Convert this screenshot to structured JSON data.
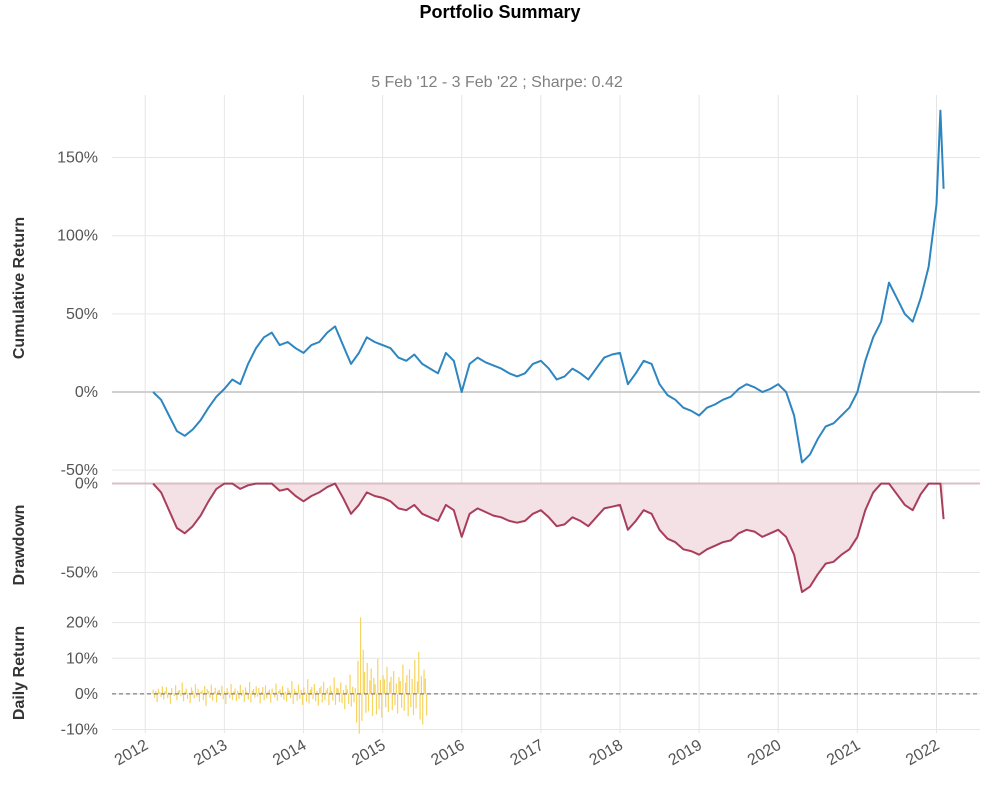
{
  "title": "Portfolio Summary",
  "subtitle": "5 Feb '12 -  3 Feb '22 ;  Sharpe: 0.42",
  "colors": {
    "cumulative": "#2e86c1",
    "drawdown": "#a93e5a",
    "drawdown_fill": "#f3e1e6",
    "daily": "#f7d35f"
  },
  "chart_data": [
    {
      "type": "line",
      "panel": "cumulative",
      "ylabel": "Cumulative Return",
      "ylim": [
        -55,
        190
      ],
      "yticks": [
        -50,
        0,
        50,
        100,
        150
      ],
      "ytick_labels": [
        "-50%",
        "0%",
        "50%",
        "100%",
        "150%"
      ],
      "series": [
        {
          "x": [
            2012.1,
            2012.2,
            2012.3,
            2012.4,
            2012.5,
            2012.6,
            2012.7,
            2012.8,
            2012.9,
            2013.0,
            2013.1,
            2013.2,
            2013.3,
            2013.4,
            2013.5,
            2013.6,
            2013.7,
            2013.8,
            2013.9,
            2014.0,
            2014.1,
            2014.2,
            2014.3,
            2014.4,
            2014.5,
            2014.6,
            2014.7,
            2014.8,
            2014.9,
            2015.0,
            2015.1,
            2015.2,
            2015.3,
            2015.4,
            2015.5,
            2015.6,
            2015.7,
            2015.8,
            2015.9,
            2016.0,
            2016.1,
            2016.2,
            2016.3,
            2016.4,
            2016.5,
            2016.6,
            2016.7,
            2016.8,
            2016.9,
            2017.0,
            2017.1,
            2017.2,
            2017.3,
            2017.4,
            2017.5,
            2017.6,
            2017.7,
            2017.8,
            2017.9,
            2018.0,
            2018.1,
            2018.2,
            2018.3,
            2018.4,
            2018.5,
            2018.6,
            2018.7,
            2018.8,
            2018.9,
            2019.0,
            2019.1,
            2019.2,
            2019.3,
            2019.4,
            2019.5,
            2019.6,
            2019.7,
            2019.8,
            2019.9,
            2020.0,
            2020.1,
            2020.2,
            2020.3,
            2020.4,
            2020.5,
            2020.6,
            2020.7,
            2020.8,
            2020.9,
            2021.0,
            2021.1,
            2021.2,
            2021.3,
            2021.4,
            2021.5,
            2021.6,
            2021.7,
            2021.8,
            2021.9,
            2022.0,
            2022.05,
            2022.09
          ],
          "y": [
            0,
            -5,
            -15,
            -25,
            -28,
            -24,
            -18,
            -10,
            -3,
            2,
            8,
            5,
            18,
            28,
            35,
            38,
            30,
            32,
            28,
            25,
            30,
            32,
            38,
            42,
            30,
            18,
            25,
            35,
            32,
            30,
            28,
            22,
            20,
            24,
            18,
            15,
            12,
            25,
            20,
            0,
            18,
            22,
            19,
            17,
            15,
            12,
            10,
            12,
            18,
            20,
            15,
            8,
            10,
            15,
            12,
            8,
            15,
            22,
            24,
            25,
            5,
            12,
            20,
            18,
            5,
            -2,
            -5,
            -10,
            -12,
            -15,
            -10,
            -8,
            -5,
            -3,
            2,
            5,
            3,
            0,
            2,
            5,
            0,
            -15,
            -45,
            -40,
            -30,
            -22,
            -20,
            -15,
            -10,
            0,
            20,
            35,
            45,
            70,
            60,
            50,
            45,
            60,
            80,
            120,
            180,
            130
          ]
        }
      ]
    },
    {
      "type": "area",
      "panel": "drawdown",
      "ylabel": "Drawdown",
      "ylim": [
        -70,
        2
      ],
      "yticks": [
        -50,
        0
      ],
      "ytick_labels": [
        "-50%",
        "0%"
      ],
      "series": [
        {
          "x": [
            2012.1,
            2012.2,
            2012.3,
            2012.4,
            2012.5,
            2012.6,
            2012.7,
            2012.8,
            2012.9,
            2013.0,
            2013.1,
            2013.2,
            2013.3,
            2013.4,
            2013.5,
            2013.6,
            2013.7,
            2013.8,
            2013.9,
            2014.0,
            2014.1,
            2014.2,
            2014.3,
            2014.4,
            2014.5,
            2014.6,
            2014.7,
            2014.8,
            2014.9,
            2015.0,
            2015.1,
            2015.2,
            2015.3,
            2015.4,
            2015.5,
            2015.6,
            2015.7,
            2015.8,
            2015.9,
            2016.0,
            2016.1,
            2016.2,
            2016.3,
            2016.4,
            2016.5,
            2016.6,
            2016.7,
            2016.8,
            2016.9,
            2017.0,
            2017.1,
            2017.2,
            2017.3,
            2017.4,
            2017.5,
            2017.6,
            2017.7,
            2017.8,
            2017.9,
            2018.0,
            2018.1,
            2018.2,
            2018.3,
            2018.4,
            2018.5,
            2018.6,
            2018.7,
            2018.8,
            2018.9,
            2019.0,
            2019.1,
            2019.2,
            2019.3,
            2019.4,
            2019.5,
            2019.6,
            2019.7,
            2019.8,
            2019.9,
            2020.0,
            2020.1,
            2020.2,
            2020.3,
            2020.4,
            2020.5,
            2020.6,
            2020.7,
            2020.8,
            2020.9,
            2021.0,
            2021.1,
            2021.2,
            2021.3,
            2021.4,
            2021.5,
            2021.6,
            2021.7,
            2021.8,
            2021.9,
            2022.0,
            2022.05,
            2022.09
          ],
          "y": [
            0,
            -5,
            -15,
            -25,
            -28,
            -24,
            -18,
            -10,
            -3,
            0,
            0,
            -3,
            -1,
            0,
            0,
            0,
            -4,
            -3,
            -7,
            -10,
            -7,
            -5,
            -2,
            0,
            -8,
            -17,
            -12,
            -5,
            -7,
            -8,
            -10,
            -14,
            -15,
            -12,
            -17,
            -19,
            -21,
            -12,
            -15,
            -30,
            -17,
            -14,
            -16,
            -18,
            -19,
            -21,
            -22,
            -21,
            -17,
            -15,
            -19,
            -24,
            -23,
            -19,
            -21,
            -24,
            -19,
            -14,
            -13,
            -12,
            -26,
            -21,
            -15,
            -17,
            -26,
            -31,
            -33,
            -37,
            -38,
            -40,
            -37,
            -35,
            -33,
            -32,
            -28,
            -26,
            -27,
            -30,
            -28,
            -26,
            -30,
            -40,
            -61,
            -58,
            -51,
            -45,
            -44,
            -40,
            -37,
            -30,
            -15,
            -5,
            0,
            0,
            -6,
            -12,
            -15,
            -6,
            0,
            0,
            0,
            -20
          ]
        }
      ]
    },
    {
      "type": "bar",
      "panel": "daily",
      "ylabel": "Daily Return",
      "ylim": [
        -11,
        23
      ],
      "yticks": [
        -10,
        0,
        10,
        20
      ],
      "ytick_labels": [
        "-10%",
        "0%",
        "10%",
        "20%"
      ],
      "baseline": 0,
      "x_start": 2012.1,
      "x_step": 0.0167,
      "values": [
        1.2,
        -1.1,
        0.8,
        -2.3,
        1.4,
        0.5,
        -0.9,
        2.1,
        -1.6,
        0.7,
        1.9,
        -1.2,
        0.4,
        -2.8,
        1.6,
        0.3,
        -0.6,
        2.4,
        -1.8,
        0.9,
        1.1,
        -0.7,
        3.2,
        -2.1,
        0.6,
        1.5,
        -1.4,
        0.2,
        -2.6,
        1.8,
        0.9,
        -1.3,
        2.7,
        -0.8,
        1.4,
        -2.2,
        0.6,
        1.0,
        -1.7,
        2.2,
        -3.4,
        1.3,
        0.8,
        -1.1,
        2.6,
        -1.9,
        0.5,
        1.7,
        -2.4,
        0.9,
        1.2,
        -0.6,
        2.3,
        -1.5,
        0.8,
        -2.9,
        1.6,
        0.4,
        -1.2,
        2.8,
        -1.7,
        0.7,
        1.5,
        -2.0,
        0.9,
        -1.4,
        2.5,
        -0.7,
        1.1,
        -2.3,
        1.8,
        0.6,
        -1.6,
        3.3,
        -2.4,
        0.9,
        1.4,
        -1.1,
        2.1,
        -0.8,
        1.6,
        -2.7,
        0.5,
        1.9,
        -1.8,
        2.4,
        -1.3,
        0.7,
        1.2,
        -2.5,
        1.5,
        0.4,
        -1.0,
        2.9,
        -1.9,
        0.8,
        1.3,
        -0.9,
        2.2,
        -1.6,
        0.6,
        -2.1,
        1.7,
        0.9,
        -1.2,
        3.6,
        -2.8,
        1.4,
        0.7,
        -1.9,
        2.6,
        -1.4,
        1.1,
        -3.1,
        1.8,
        0.5,
        -2.2,
        4.1,
        -2.7,
        1.2,
        1.9,
        -1.5,
        2.8,
        -2.1,
        0.9,
        -3.3,
        1.6,
        2.1,
        -2.4,
        3.4,
        -1.8,
        1.0,
        1.6,
        -3.2,
        2.3,
        0.8,
        -1.9,
        4.6,
        -3.1,
        1.7,
        1.5,
        -2.3,
        3.2,
        -2.6,
        1.1,
        -4.3,
        2.5,
        1.3,
        -2.8,
        5.4,
        -3.6,
        2.0,
        -2.4,
        1.7,
        -8.1,
        9.3,
        -11.2,
        21.5,
        -7.6,
        12.4,
        6.2,
        -5.3,
        8.7,
        -4.9,
        3.8,
        7.1,
        -6.2,
        4.5,
        2.7,
        -5.8,
        9.8,
        -4.4,
        3.9,
        -6.7,
        5.2,
        4.1,
        -3.8,
        7.6,
        -5.1,
        3.3,
        4.8,
        -4.6,
        6.4,
        -3.2,
        2.9,
        -5.5,
        4.7,
        3.6,
        -3.9,
        8.2,
        -4.8,
        3.1,
        5.3,
        -6.3,
        6.9,
        -3.7,
        4.2,
        -5.9,
        9.6,
        -4.1,
        3.5,
        11.8,
        -7.2,
        5.1,
        -8.6,
        6.8,
        4.3,
        -6.1
      ]
    }
  ],
  "x_axis": {
    "ticks": [
      2012,
      2013,
      2014,
      2015,
      2016,
      2017,
      2018,
      2019,
      2020,
      2021,
      2022
    ],
    "tick_labels": [
      "2012",
      "2013",
      "2014",
      "2015",
      "2016",
      "2017",
      "2018",
      "2019",
      "2020",
      "2021",
      "2022"
    ],
    "xlim": [
      2011.58,
      2022.55
    ]
  }
}
